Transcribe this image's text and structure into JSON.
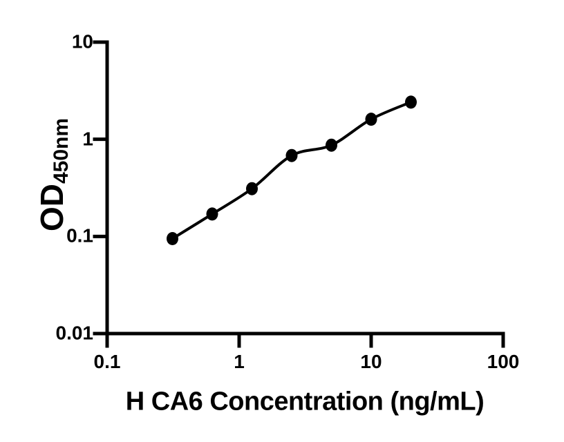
{
  "figure": {
    "background_color": "#ffffff"
  },
  "chart_data": {
    "type": "scatter",
    "title": "",
    "xlabel": "H CA6 Concentration (ng/mL)",
    "ylabel": "OD450nm",
    "ylabel_main": "OD",
    "ylabel_sub": "450nm",
    "x_scale": "log",
    "y_scale": "log",
    "xlim": [
      0.1,
      100
    ],
    "ylim": [
      0.01,
      10
    ],
    "grid": false,
    "legend": "none",
    "x_ticks": [
      {
        "value": 0.1,
        "label": "0.1"
      },
      {
        "value": 1,
        "label": "1"
      },
      {
        "value": 10,
        "label": "10"
      },
      {
        "value": 100,
        "label": "100"
      }
    ],
    "y_ticks": [
      {
        "value": 10,
        "label": "10"
      },
      {
        "value": 1,
        "label": "1"
      },
      {
        "value": 0.1,
        "label": "0.1"
      },
      {
        "value": 0.01,
        "label": "0.01"
      }
    ],
    "points": [
      {
        "x": 0.3125,
        "y": 0.095
      },
      {
        "x": 0.625,
        "y": 0.17
      },
      {
        "x": 1.25,
        "y": 0.31
      },
      {
        "x": 2.5,
        "y": 0.68
      },
      {
        "x": 5,
        "y": 0.87
      },
      {
        "x": 10,
        "y": 1.61
      },
      {
        "x": 20,
        "y": 2.41
      }
    ],
    "fit_line": true,
    "colors": {
      "axis": "#000000",
      "marker": "#000000",
      "line": "#000000",
      "text": "#000000"
    }
  }
}
